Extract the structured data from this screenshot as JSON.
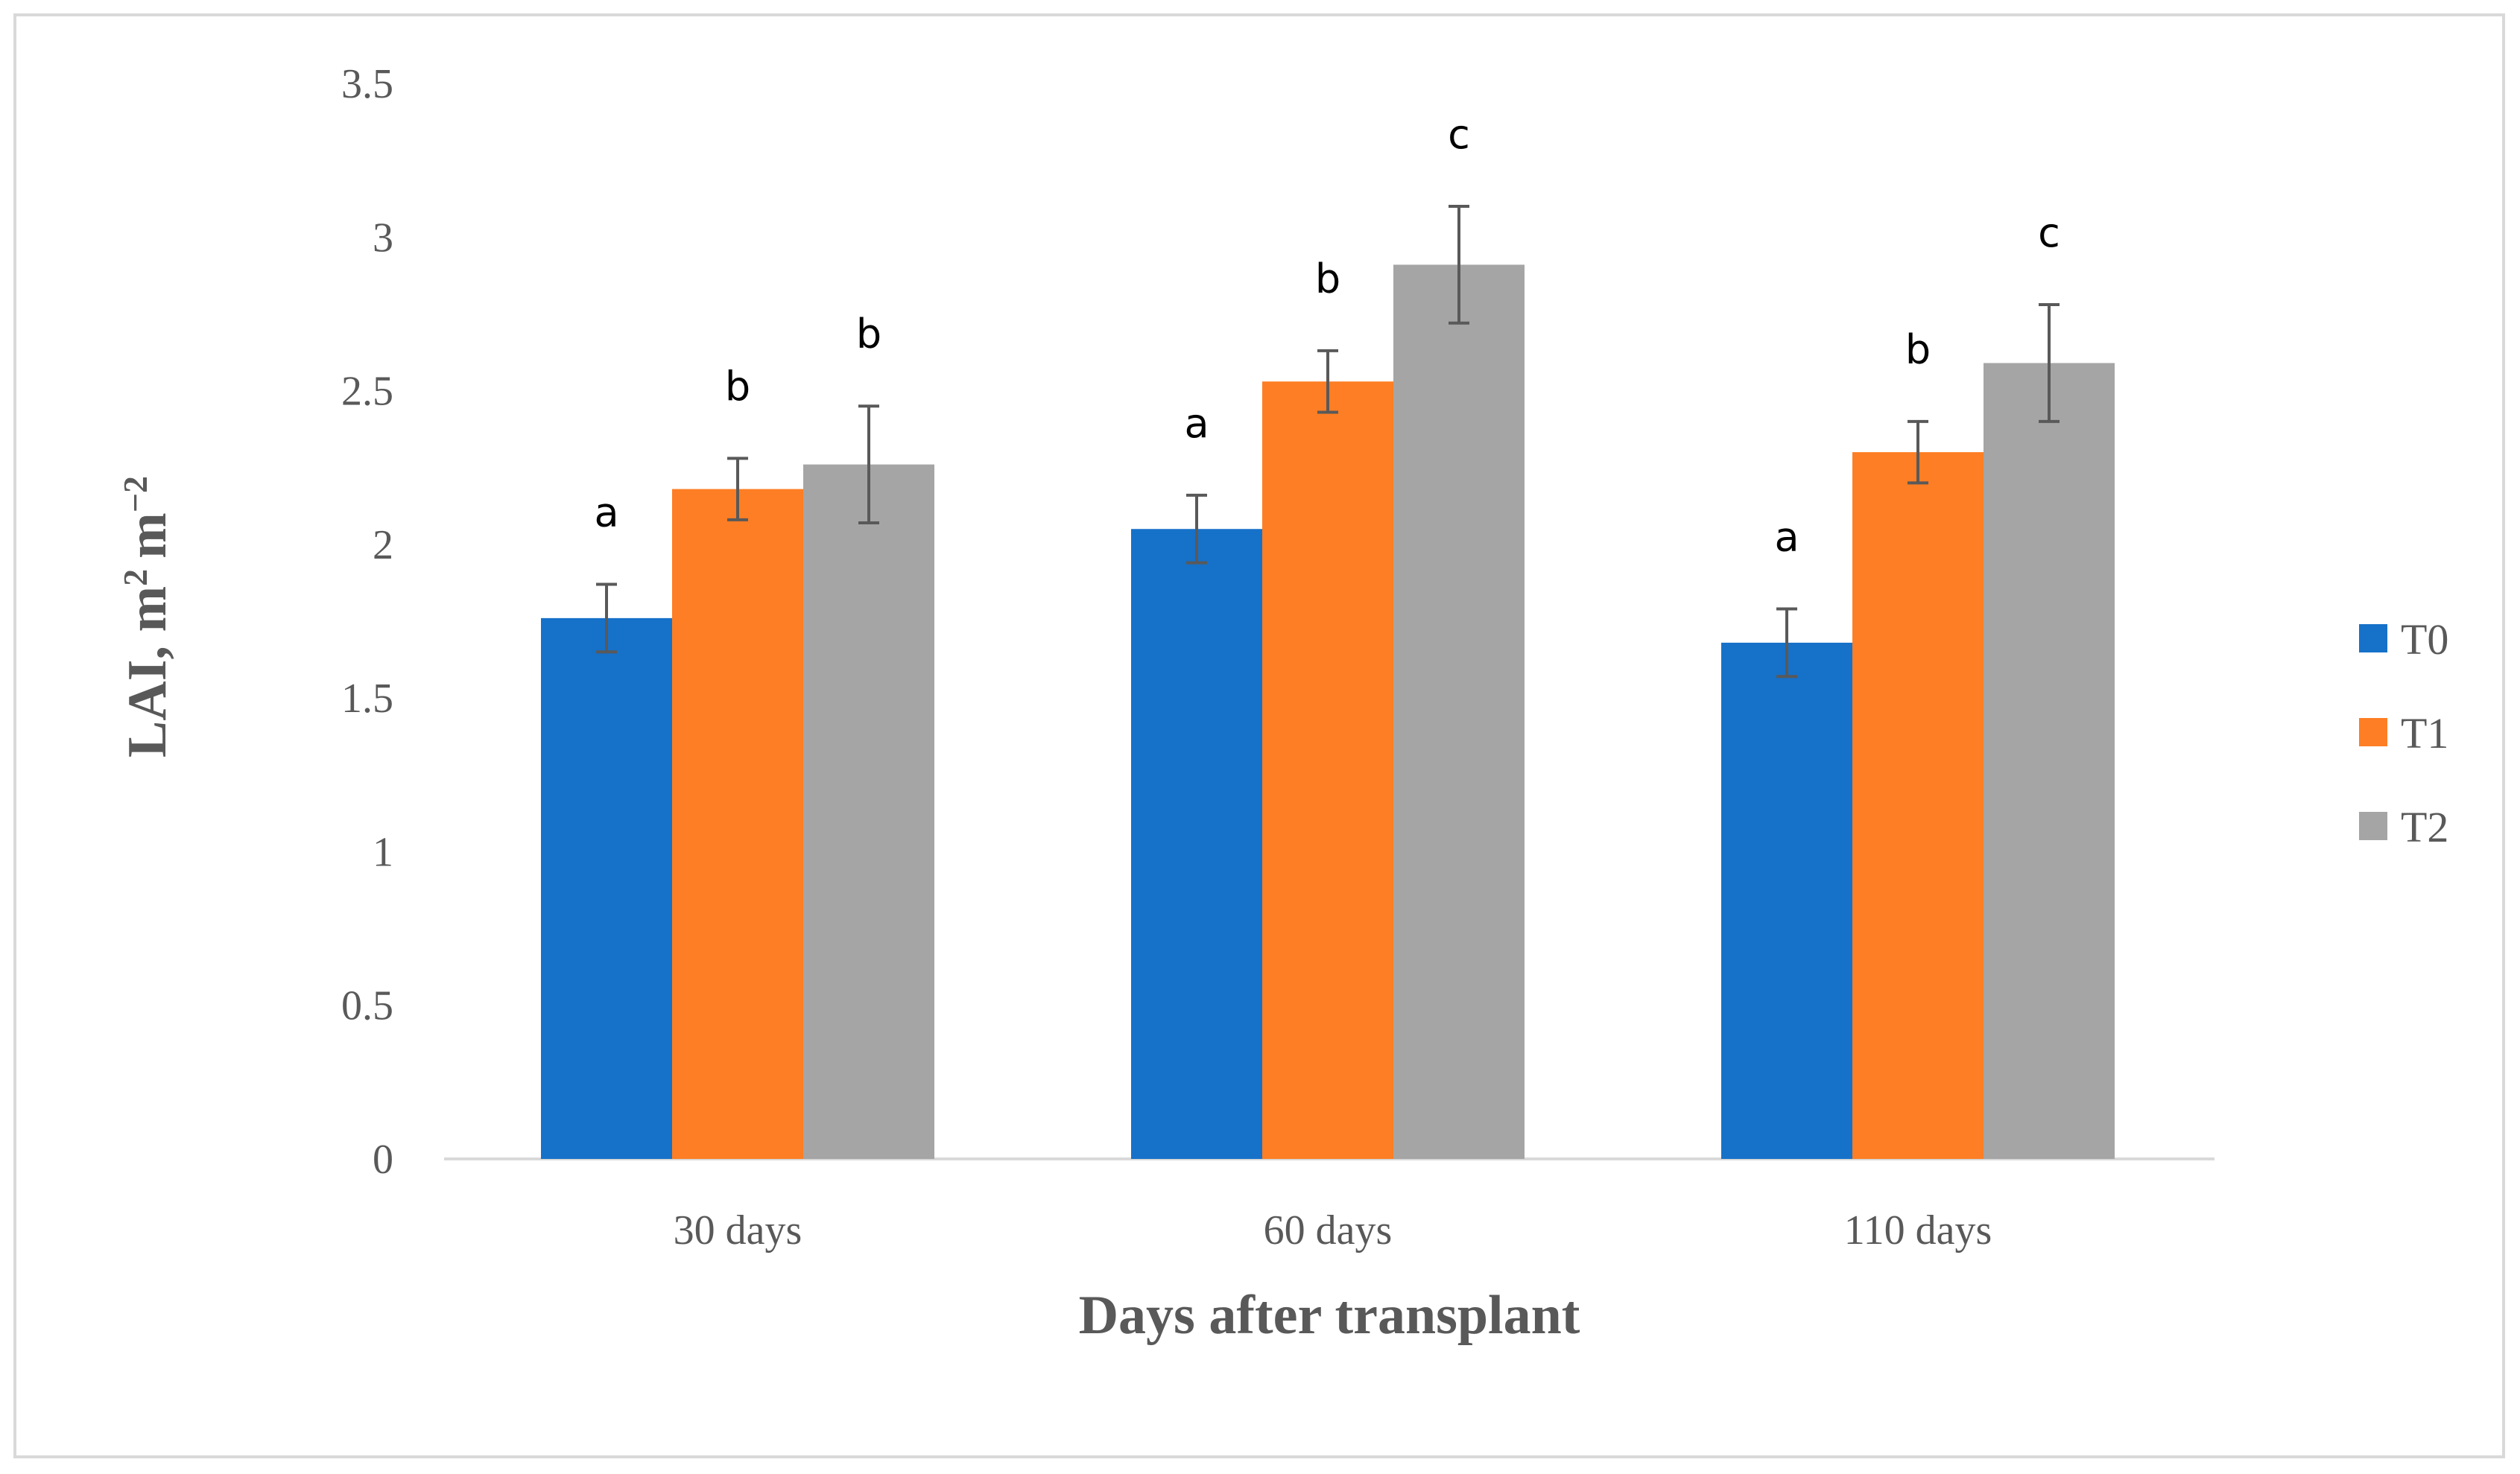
{
  "chart_data": {
    "type": "bar",
    "categories": [
      "30 days",
      "60 days",
      "110 days"
    ],
    "series": [
      {
        "name": "T0",
        "color": "#1671c9",
        "values": [
          1.76,
          2.05,
          1.68
        ],
        "errors": [
          0.11,
          0.11,
          0.11
        ],
        "letters": [
          "a",
          "a",
          "a"
        ]
      },
      {
        "name": "T1",
        "color": "#fd7e24",
        "values": [
          2.18,
          2.53,
          2.3
        ],
        "errors": [
          0.1,
          0.1,
          0.1
        ],
        "letters": [
          "b",
          "b",
          "b"
        ]
      },
      {
        "name": "T2",
        "color": "#a5a5a5",
        "values": [
          2.26,
          2.91,
          2.59
        ],
        "errors": [
          0.19,
          0.19,
          0.19
        ],
        "letters": [
          "b",
          "c",
          "c"
        ]
      }
    ],
    "yticks": [
      "0",
      "0.5",
      "1",
      "1.5",
      "2",
      "2.5",
      "3",
      "3.5"
    ],
    "ylim": [
      0,
      3.5
    ],
    "xlabel": "Days after transplant",
    "ylabel": "LAI, m",
    "ylabel_unit_main": "m",
    "ylabel_sup1": "2",
    "ylabel_sup2": "−2",
    "legend_position": "right",
    "grid": false
  }
}
